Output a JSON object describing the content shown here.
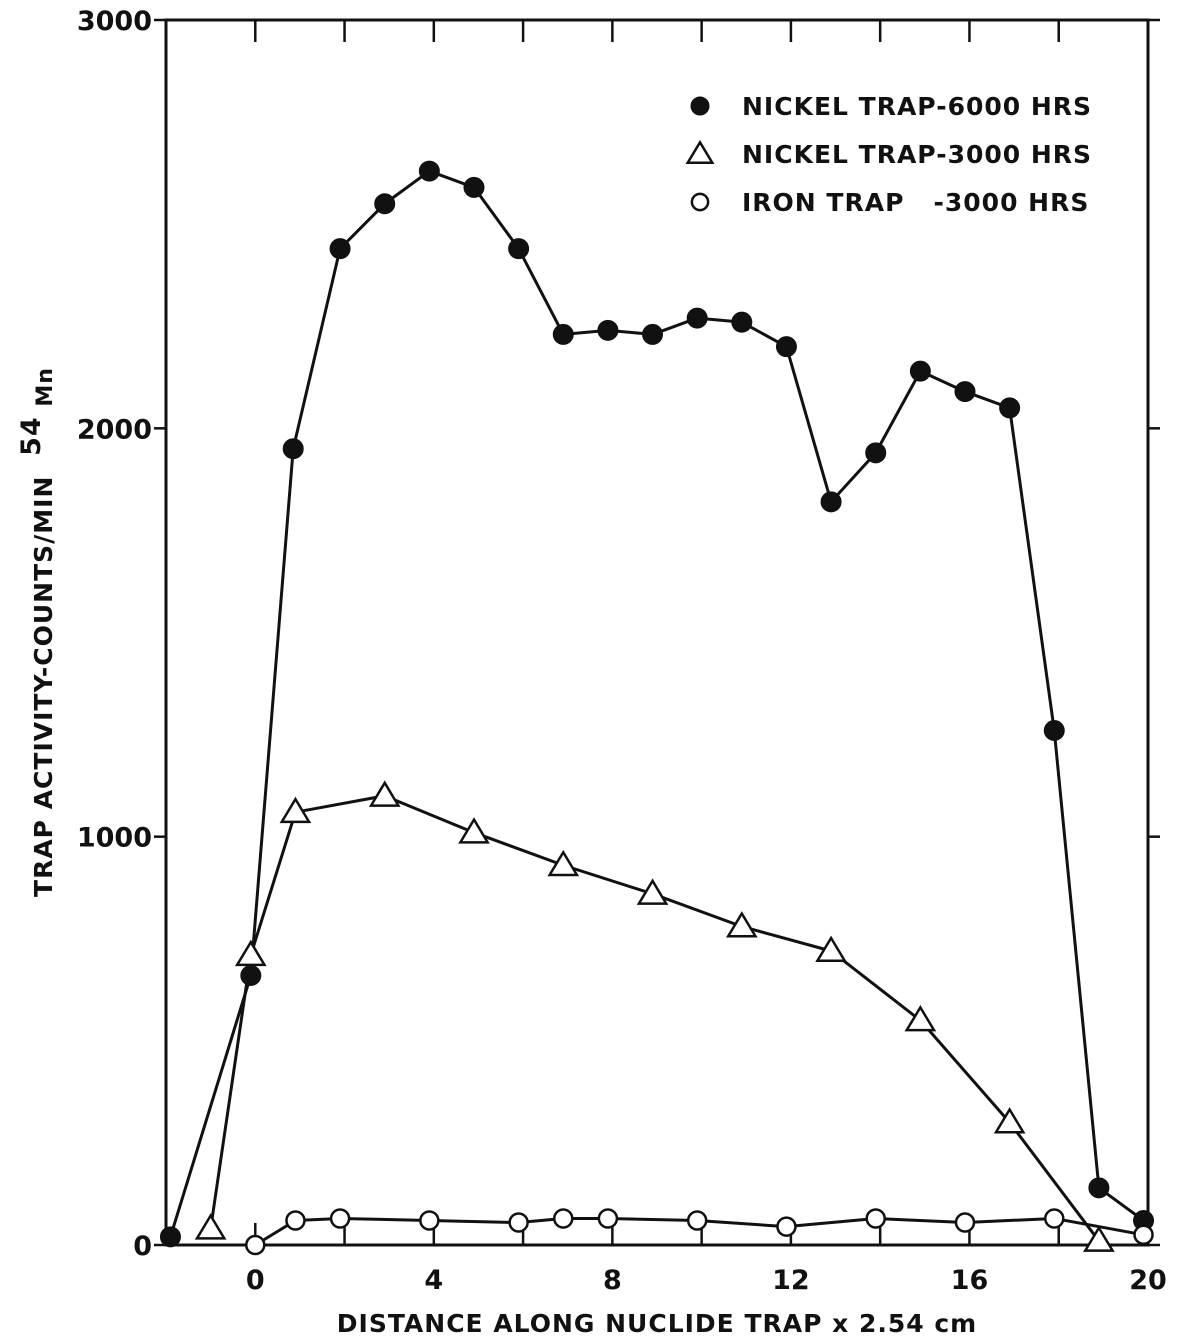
{
  "chart_data": {
    "type": "line",
    "xlabel": "DISTANCE ALONG NUCLIDE TRAP x 2.54 cm",
    "ylabel": "TRAP ACTIVITY-COUNTS/MIN",
    "ylabel_isotope": "54",
    "ylabel_element": "Mn",
    "xlim": [
      -2,
      20
    ],
    "ylim": [
      0,
      3000
    ],
    "x_ticks": [
      0,
      4,
      8,
      12,
      16,
      20
    ],
    "x_tick_labels": [
      "0",
      "4",
      "8",
      "12",
      "16",
      "20"
    ],
    "y_ticks": [
      0,
      1000,
      2000,
      3000
    ],
    "y_tick_labels": [
      "0",
      "1000",
      "2000",
      "3000"
    ],
    "grid": false,
    "legend_position": "top-right",
    "series": [
      {
        "name": "NICKEL TRAP-6000 HRS",
        "marker": "filled-circle",
        "color": "#111111",
        "x": [
          -1.9,
          -0.1,
          0.85,
          1.9,
          2.9,
          3.9,
          4.9,
          5.9,
          6.9,
          7.9,
          8.9,
          9.9,
          10.9,
          11.9,
          12.9,
          13.9,
          14.9,
          15.9,
          16.9,
          17.9,
          18.9,
          19.9
        ],
        "y": [
          20,
          660,
          1950,
          2440,
          2550,
          2630,
          2590,
          2440,
          2230,
          2240,
          2230,
          2270,
          2260,
          2200,
          1820,
          1940,
          2140,
          2090,
          2050,
          1260,
          140,
          60
        ]
      },
      {
        "name": "NICKEL TRAP-3000 HRS",
        "marker": "open-triangle",
        "color": "#111111",
        "x": [
          -1.0,
          -0.1,
          0.9,
          2.9,
          4.9,
          6.9,
          8.9,
          10.9,
          12.9,
          14.9,
          16.9,
          18.9
        ],
        "y": [
          40,
          710,
          1060,
          1100,
          1010,
          930,
          860,
          780,
          720,
          550,
          300,
          10
        ]
      },
      {
        "name": "IRON TRAP   -3000 HRS",
        "marker": "open-circle",
        "color": "#111111",
        "x": [
          0.0,
          0.9,
          1.9,
          3.9,
          5.9,
          6.9,
          7.9,
          9.9,
          11.9,
          13.9,
          15.9,
          17.9,
          19.9
        ],
        "y": [
          0,
          60,
          65,
          60,
          55,
          65,
          65,
          60,
          45,
          65,
          55,
          65,
          25
        ]
      }
    ]
  }
}
